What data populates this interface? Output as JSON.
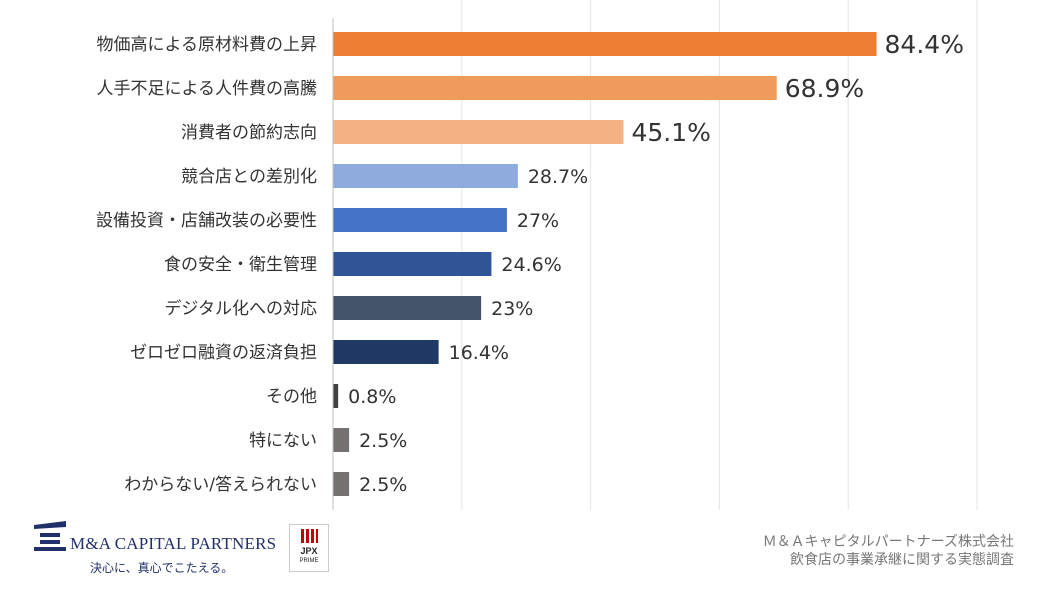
{
  "chart_data": {
    "type": "bar",
    "orientation": "horizontal",
    "categories": [
      "物価高による原材料費の上昇",
      "人手不足による人件費の高騰",
      "消費者の節約志向",
      "競合店との差別化",
      "設備投資・店舗改装の必要性",
      "食の安全・衛生管理",
      "デジタル化への対応",
      "ゼロゼロ融資の返済負担",
      "その他",
      "特にない",
      "わからない/答えられない"
    ],
    "values": [
      84.4,
      68.9,
      45.1,
      28.7,
      27,
      24.6,
      23,
      16.4,
      0.8,
      2.5,
      2.5
    ],
    "value_labels": [
      "84.4%",
      "68.9%",
      "45.1%",
      "28.7%",
      "27%",
      "24.6%",
      "23%",
      "16.4%",
      "0.8%",
      "2.5%",
      "2.5%"
    ],
    "colors": [
      "#ed7d31",
      "#f09a5c",
      "#f4b183",
      "#8faadc",
      "#4472c4",
      "#2f5597",
      "#44546a",
      "#1f3864",
      "#404040",
      "#767171",
      "#767171"
    ],
    "xlim": [
      0,
      100
    ],
    "grid": true,
    "legend": false
  },
  "footer": {
    "logo_name": "M&A CAPITAL PARTNERS",
    "logo_tagline": "決心に、真心でこたえる。",
    "badge_line1": "JPX",
    "badge_line2": "PRIME",
    "source_line1": "Ｍ＆Ａキャピタルパートナーズ株式会社",
    "source_line2": "飲食店の事業承継に関する実態調査"
  }
}
